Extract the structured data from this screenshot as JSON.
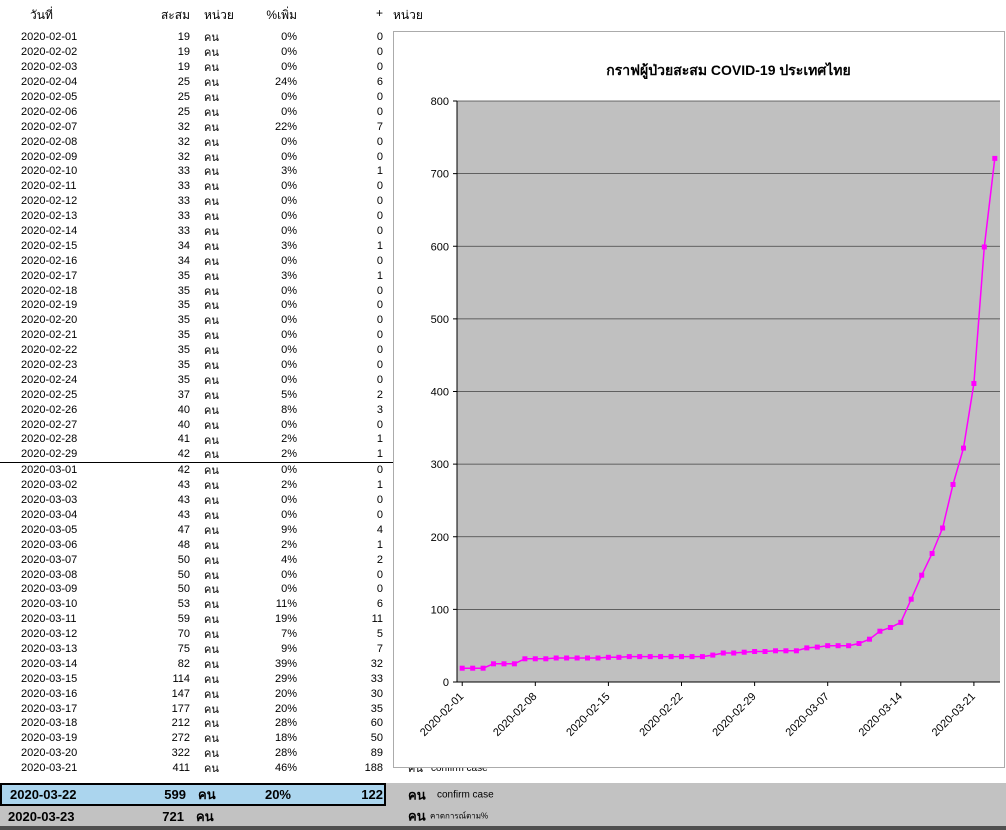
{
  "page": {
    "band_color": "#c2c2c2",
    "highlight_color": "#abd5ee",
    "bottom_strip_color": "#4f4f4f"
  },
  "table": {
    "headers": {
      "date": "วันที่",
      "cum": "สะสม",
      "unit": "หน่วย",
      "pct": "%เพิ่ม",
      "plus": "+",
      "plus_unit": "หน่วย"
    },
    "separator_after_index": 28,
    "rows": [
      {
        "date": "2020-02-01",
        "cum": "19",
        "unit": "คน",
        "pct": "0%",
        "plus": "0"
      },
      {
        "date": "2020-02-02",
        "cum": "19",
        "unit": "คน",
        "pct": "0%",
        "plus": "0"
      },
      {
        "date": "2020-02-03",
        "cum": "19",
        "unit": "คน",
        "pct": "0%",
        "plus": "0"
      },
      {
        "date": "2020-02-04",
        "cum": "25",
        "unit": "คน",
        "pct": "24%",
        "plus": "6"
      },
      {
        "date": "2020-02-05",
        "cum": "25",
        "unit": "คน",
        "pct": "0%",
        "plus": "0"
      },
      {
        "date": "2020-02-06",
        "cum": "25",
        "unit": "คน",
        "pct": "0%",
        "plus": "0"
      },
      {
        "date": "2020-02-07",
        "cum": "32",
        "unit": "คน",
        "pct": "22%",
        "plus": "7"
      },
      {
        "date": "2020-02-08",
        "cum": "32",
        "unit": "คน",
        "pct": "0%",
        "plus": "0"
      },
      {
        "date": "2020-02-09",
        "cum": "32",
        "unit": "คน",
        "pct": "0%",
        "plus": "0"
      },
      {
        "date": "2020-02-10",
        "cum": "33",
        "unit": "คน",
        "pct": "3%",
        "plus": "1"
      },
      {
        "date": "2020-02-11",
        "cum": "33",
        "unit": "คน",
        "pct": "0%",
        "plus": "0"
      },
      {
        "date": "2020-02-12",
        "cum": "33",
        "unit": "คน",
        "pct": "0%",
        "plus": "0"
      },
      {
        "date": "2020-02-13",
        "cum": "33",
        "unit": "คน",
        "pct": "0%",
        "plus": "0"
      },
      {
        "date": "2020-02-14",
        "cum": "33",
        "unit": "คน",
        "pct": "0%",
        "plus": "0"
      },
      {
        "date": "2020-02-15",
        "cum": "34",
        "unit": "คน",
        "pct": "3%",
        "plus": "1"
      },
      {
        "date": "2020-02-16",
        "cum": "34",
        "unit": "คน",
        "pct": "0%",
        "plus": "0"
      },
      {
        "date": "2020-02-17",
        "cum": "35",
        "unit": "คน",
        "pct": "3%",
        "plus": "1"
      },
      {
        "date": "2020-02-18",
        "cum": "35",
        "unit": "คน",
        "pct": "0%",
        "plus": "0"
      },
      {
        "date": "2020-02-19",
        "cum": "35",
        "unit": "คน",
        "pct": "0%",
        "plus": "0"
      },
      {
        "date": "2020-02-20",
        "cum": "35",
        "unit": "คน",
        "pct": "0%",
        "plus": "0"
      },
      {
        "date": "2020-02-21",
        "cum": "35",
        "unit": "คน",
        "pct": "0%",
        "plus": "0"
      },
      {
        "date": "2020-02-22",
        "cum": "35",
        "unit": "คน",
        "pct": "0%",
        "plus": "0"
      },
      {
        "date": "2020-02-23",
        "cum": "35",
        "unit": "คน",
        "pct": "0%",
        "plus": "0"
      },
      {
        "date": "2020-02-24",
        "cum": "35",
        "unit": "คน",
        "pct": "0%",
        "plus": "0"
      },
      {
        "date": "2020-02-25",
        "cum": "37",
        "unit": "คน",
        "pct": "5%",
        "plus": "2"
      },
      {
        "date": "2020-02-26",
        "cum": "40",
        "unit": "คน",
        "pct": "8%",
        "plus": "3"
      },
      {
        "date": "2020-02-27",
        "cum": "40",
        "unit": "คน",
        "pct": "0%",
        "plus": "0"
      },
      {
        "date": "2020-02-28",
        "cum": "41",
        "unit": "คน",
        "pct": "2%",
        "plus": "1"
      },
      {
        "date": "2020-02-29",
        "cum": "42",
        "unit": "คน",
        "pct": "2%",
        "plus": "1"
      },
      {
        "date": "2020-03-01",
        "cum": "42",
        "unit": "คน",
        "pct": "0%",
        "plus": "0"
      },
      {
        "date": "2020-03-02",
        "cum": "43",
        "unit": "คน",
        "pct": "2%",
        "plus": "1"
      },
      {
        "date": "2020-03-03",
        "cum": "43",
        "unit": "คน",
        "pct": "0%",
        "plus": "0"
      },
      {
        "date": "2020-03-04",
        "cum": "43",
        "unit": "คน",
        "pct": "0%",
        "plus": "0"
      },
      {
        "date": "2020-03-05",
        "cum": "47",
        "unit": "คน",
        "pct": "9%",
        "plus": "4"
      },
      {
        "date": "2020-03-06",
        "cum": "48",
        "unit": "คน",
        "pct": "2%",
        "plus": "1"
      },
      {
        "date": "2020-03-07",
        "cum": "50",
        "unit": "คน",
        "pct": "4%",
        "plus": "2"
      },
      {
        "date": "2020-03-08",
        "cum": "50",
        "unit": "คน",
        "pct": "0%",
        "plus": "0"
      },
      {
        "date": "2020-03-09",
        "cum": "50",
        "unit": "คน",
        "pct": "0%",
        "plus": "0"
      },
      {
        "date": "2020-03-10",
        "cum": "53",
        "unit": "คน",
        "pct": "11%",
        "plus": "6"
      },
      {
        "date": "2020-03-11",
        "cum": "59",
        "unit": "คน",
        "pct": "19%",
        "plus": "11"
      },
      {
        "date": "2020-03-12",
        "cum": "70",
        "unit": "คน",
        "pct": "7%",
        "plus": "5"
      },
      {
        "date": "2020-03-13",
        "cum": "75",
        "unit": "คน",
        "pct": "9%",
        "plus": "7"
      },
      {
        "date": "2020-03-14",
        "cum": "82",
        "unit": "คน",
        "pct": "39%",
        "plus": "32"
      },
      {
        "date": "2020-03-15",
        "cum": "114",
        "unit": "คน",
        "pct": "29%",
        "plus": "33"
      },
      {
        "date": "2020-03-16",
        "cum": "147",
        "unit": "คน",
        "pct": "20%",
        "plus": "30"
      },
      {
        "date": "2020-03-17",
        "cum": "177",
        "unit": "คน",
        "pct": "20%",
        "plus": "35"
      },
      {
        "date": "2020-03-18",
        "cum": "212",
        "unit": "คน",
        "pct": "28%",
        "plus": "60"
      },
      {
        "date": "2020-03-19",
        "cum": "272",
        "unit": "คน",
        "pct": "18%",
        "plus": "50"
      },
      {
        "date": "2020-03-20",
        "cum": "322",
        "unit": "คน",
        "pct": "28%",
        "plus": "89"
      },
      {
        "date": "2020-03-21",
        "cum": "411",
        "unit": "คน",
        "pct": "46%",
        "plus": "188",
        "nu": "คน",
        "note": "confirm case"
      }
    ],
    "highlight_row": {
      "date": "2020-03-22",
      "cum": "599",
      "unit": "คน",
      "pct": "20%",
      "plus": "122",
      "nu": "คน",
      "note": "confirm case"
    },
    "forecast_row": {
      "date": "2020-03-23",
      "cum": "721",
      "unit": "คน",
      "nu": "คน",
      "note": "คาดการณ์ตาม%"
    }
  },
  "chart_data": {
    "type": "line",
    "title": "กราฟผู้ป่วยสะสม COVID-19 ประเทศไทย",
    "x": [
      "2020-02-01",
      "2020-02-02",
      "2020-02-03",
      "2020-02-04",
      "2020-02-05",
      "2020-02-06",
      "2020-02-07",
      "2020-02-08",
      "2020-02-09",
      "2020-02-10",
      "2020-02-11",
      "2020-02-12",
      "2020-02-13",
      "2020-02-14",
      "2020-02-15",
      "2020-02-16",
      "2020-02-17",
      "2020-02-18",
      "2020-02-19",
      "2020-02-20",
      "2020-02-21",
      "2020-02-22",
      "2020-02-23",
      "2020-02-24",
      "2020-02-25",
      "2020-02-26",
      "2020-02-27",
      "2020-02-28",
      "2020-02-29",
      "2020-03-01",
      "2020-03-02",
      "2020-03-03",
      "2020-03-04",
      "2020-03-05",
      "2020-03-06",
      "2020-03-07",
      "2020-03-08",
      "2020-03-09",
      "2020-03-10",
      "2020-03-11",
      "2020-03-12",
      "2020-03-13",
      "2020-03-14",
      "2020-03-15",
      "2020-03-16",
      "2020-03-17",
      "2020-03-18",
      "2020-03-19",
      "2020-03-20",
      "2020-03-21",
      "2020-03-22",
      "2020-03-23"
    ],
    "values": [
      19,
      19,
      19,
      25,
      25,
      25,
      32,
      32,
      32,
      33,
      33,
      33,
      33,
      33,
      34,
      34,
      35,
      35,
      35,
      35,
      35,
      35,
      35,
      35,
      37,
      40,
      40,
      41,
      42,
      42,
      43,
      43,
      43,
      47,
      48,
      50,
      50,
      50,
      53,
      59,
      70,
      75,
      82,
      114,
      147,
      177,
      212,
      272,
      322,
      411,
      599,
      721
    ],
    "x_tick_labels": [
      "2020-02-01",
      "2020-02-08",
      "2020-02-15",
      "2020-02-22",
      "2020-02-29",
      "2020-03-07",
      "2020-03-14",
      "2020-03-21"
    ],
    "x_tick_step": 7,
    "y_ticks": [
      0,
      100,
      200,
      300,
      400,
      500,
      600,
      700,
      800
    ],
    "ylim": [
      0,
      800
    ],
    "xlabel": "",
    "ylabel": "",
    "grid": true,
    "legend": false,
    "series_color": "#ff00ff",
    "plot_bg": "#c0c0c0",
    "marker": "square"
  }
}
